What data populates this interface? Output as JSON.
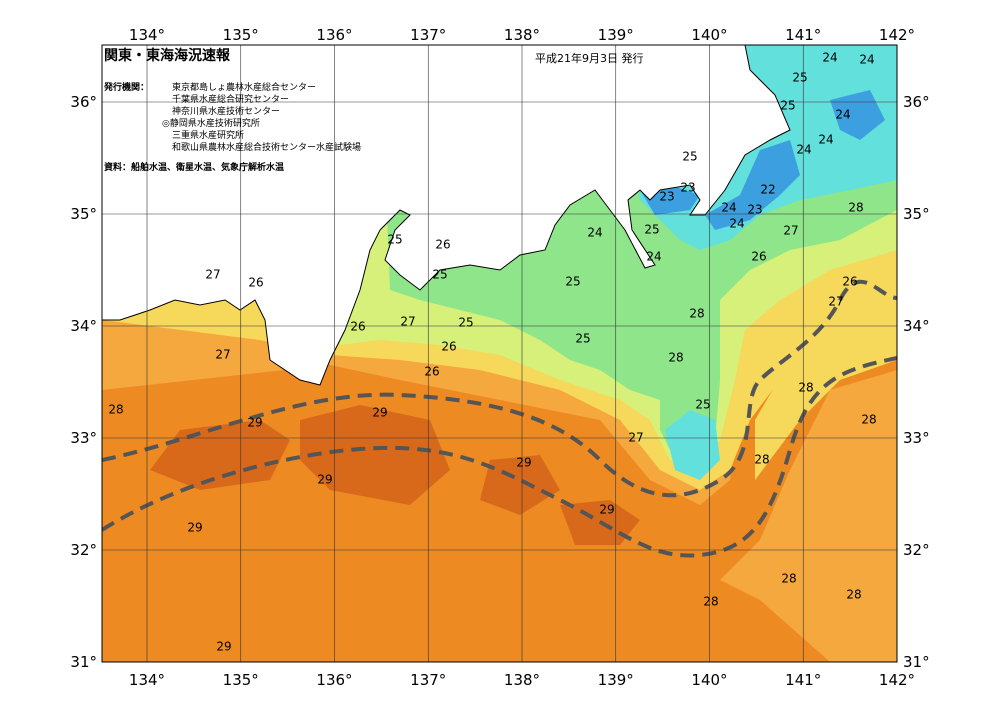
{
  "map": {
    "title": "関東・東海海況速報",
    "date": "平成21年9月3日 発行",
    "issuers_label": "発行機関：",
    "issuers": [
      "東京都島しょ農林水産総合センター",
      "千葉県水産総合研究センター",
      "神奈川県水産技術センター",
      "◎静岡県水産技術研究所",
      "三重県水産研究所",
      "和歌山県農林水産総合技術センター水産試験場"
    ],
    "source": "資料：船舶水温、衛星水温、気象庁解析水温",
    "longitude_labels": [
      "134°",
      "135°",
      "136°",
      "137°",
      "138°",
      "139°",
      "140°",
      "141°",
      "142°"
    ],
    "latitude_labels": [
      "36°",
      "35°",
      "34°",
      "33°",
      "32°",
      "31°"
    ],
    "contour_labels": [
      27,
      26,
      27,
      28,
      29,
      29,
      29,
      29,
      29,
      29,
      29,
      25,
      26,
      25,
      26,
      27,
      25,
      26,
      26,
      25,
      25,
      24,
      25,
      24,
      25,
      23,
      23,
      24,
      23,
      24,
      22,
      25,
      25,
      24,
      24,
      24,
      24,
      24,
      28,
      27,
      26,
      26,
      27,
      28,
      28,
      25,
      27,
      28,
      28,
      28,
      28,
      28,
      28
    ]
  }
}
